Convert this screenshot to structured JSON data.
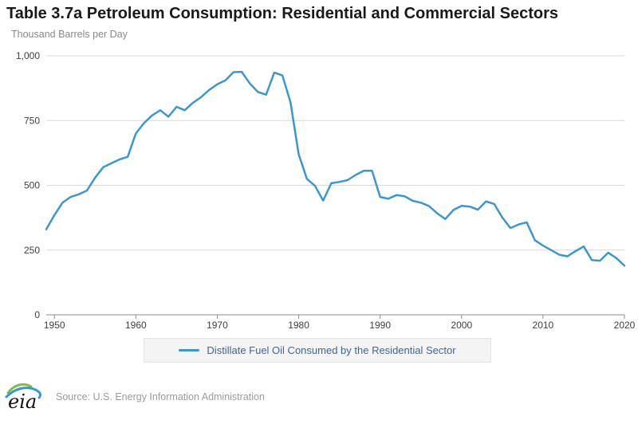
{
  "header": {
    "title": "Table 3.7a Petroleum Consumption: Residential and Commercial Sectors",
    "subtitle": "Thousand Barrels per Day"
  },
  "chart_data": {
    "type": "line",
    "title": "Table 3.7a Petroleum Consumption: Residential and Commercial Sectors",
    "ylabel": "Thousand Barrels per Day",
    "xlabel": "",
    "grid": true,
    "legend_position": "bottom",
    "ylim": [
      0,
      1000
    ],
    "yticks": [
      {
        "value": 0,
        "label": "0"
      },
      {
        "value": 250,
        "label": "250"
      },
      {
        "value": 500,
        "label": "500"
      },
      {
        "value": 750,
        "label": "750"
      },
      {
        "value": 1000,
        "label": "1,000"
      }
    ],
    "xticks": [
      "1950",
      "1960",
      "1970",
      "1980",
      "1990",
      "2000",
      "2010",
      "2020"
    ],
    "years": [
      1949,
      1950,
      1951,
      1952,
      1953,
      1954,
      1955,
      1956,
      1957,
      1958,
      1959,
      1960,
      1961,
      1962,
      1963,
      1964,
      1965,
      1966,
      1967,
      1968,
      1969,
      1970,
      1971,
      1972,
      1973,
      1974,
      1975,
      1976,
      1977,
      1978,
      1979,
      1980,
      1981,
      1982,
      1983,
      1984,
      1985,
      1986,
      1987,
      1988,
      1989,
      1990,
      1991,
      1992,
      1993,
      1994,
      1995,
      1996,
      1997,
      1998,
      1999,
      2000,
      2001,
      2002,
      2003,
      2004,
      2005,
      2006,
      2007,
      2008,
      2009,
      2010,
      2011,
      2012,
      2013,
      2014,
      2015,
      2016,
      2017,
      2018,
      2019,
      2020
    ],
    "series": [
      {
        "name": "Distillate Fuel Oil Consumed by the Residential Sector",
        "color": "#3b97d3",
        "values": [
          330,
          385,
          433,
          455,
          465,
          480,
          530,
          570,
          585,
          600,
          610,
          700,
          740,
          770,
          790,
          765,
          803,
          790,
          818,
          840,
          868,
          890,
          905,
          937,
          938,
          893,
          860,
          850,
          935,
          924,
          820,
          620,
          525,
          498,
          441,
          508,
          513,
          520,
          540,
          556,
          556,
          455,
          448,
          462,
          458,
          440,
          433,
          420,
          392,
          370,
          405,
          421,
          418,
          406,
          438,
          428,
          376,
          335,
          349,
          357,
          288,
          267,
          250,
          232,
          226,
          246,
          264,
          211,
          209,
          240,
          219,
          190
        ]
      }
    ]
  },
  "colors": {
    "line": "#3b97d3",
    "legend_text": "#35689e",
    "grid": "#d9d9d9",
    "axis": "#8c8c8c",
    "tick_text": "#404040"
  },
  "footer": {
    "logo_text": "eia",
    "source": "Source: U.S. Energy Information Administration"
  }
}
